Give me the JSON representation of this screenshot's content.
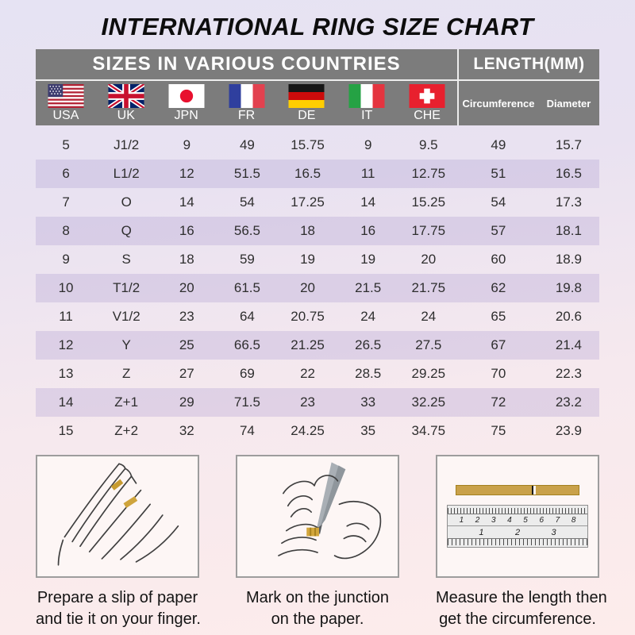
{
  "page": {
    "title": "INTERNATIONAL RING SIZE CHART"
  },
  "table": {
    "header_left": "SIZES IN VARIOUS COUNTRIES",
    "header_right": "LENGTH(MM)",
    "flags": [
      {
        "country": "USA",
        "icon": "usa-flag-icon"
      },
      {
        "country": "UK",
        "icon": "uk-flag-icon"
      },
      {
        "country": "JPN",
        "icon": "japan-flag-icon"
      },
      {
        "country": "FR",
        "icon": "france-flag-icon"
      },
      {
        "country": "DE",
        "icon": "germany-flag-icon"
      },
      {
        "country": "IT",
        "icon": "italy-flag-icon"
      },
      {
        "country": "CHE",
        "icon": "switzerland-flag-icon"
      }
    ]
  },
  "chart_data": {
    "type": "table",
    "title": "INTERNATIONAL RING SIZE CHART",
    "columns": [
      "USA",
      "UK",
      "JPN",
      "FR",
      "DE",
      "IT",
      "CHE",
      "Circumference",
      "Diameter"
    ],
    "column_groups": [
      {
        "label": "SIZES IN VARIOUS COUNTRIES",
        "span": 7
      },
      {
        "label": "LENGTH(MM)",
        "span": 2
      }
    ],
    "rows": [
      [
        "5",
        "J1/2",
        "9",
        "49",
        "15.75",
        "9",
        "9.5",
        "49",
        "15.7"
      ],
      [
        "6",
        "L1/2",
        "12",
        "51.5",
        "16.5",
        "11",
        "12.75",
        "51",
        "16.5"
      ],
      [
        "7",
        "O",
        "14",
        "54",
        "17.25",
        "14",
        "15.25",
        "54",
        "17.3"
      ],
      [
        "8",
        "Q",
        "16",
        "56.5",
        "18",
        "16",
        "17.75",
        "57",
        "18.1"
      ],
      [
        "9",
        "S",
        "18",
        "59",
        "19",
        "19",
        "20",
        "60",
        "18.9"
      ],
      [
        "10",
        "T1/2",
        "20",
        "61.5",
        "20",
        "21.5",
        "21.75",
        "62",
        "19.8"
      ],
      [
        "11",
        "V1/2",
        "23",
        "64",
        "20.75",
        "24",
        "24",
        "65",
        "20.6"
      ],
      [
        "12",
        "Y",
        "25",
        "66.5",
        "21.25",
        "26.5",
        "27.5",
        "67",
        "21.4"
      ],
      [
        "13",
        "Z",
        "27",
        "69",
        "22",
        "28.5",
        "29.25",
        "70",
        "22.3"
      ],
      [
        "14",
        "Z+1",
        "29",
        "71.5",
        "23",
        "33",
        "32.25",
        "72",
        "23.2"
      ],
      [
        "15",
        "Z+2",
        "32",
        "74",
        "24.25",
        "35",
        "34.75",
        "75",
        "23.9"
      ]
    ]
  },
  "instructions": [
    {
      "icon": "hand-with-paper-illustration",
      "caption_line1": "Prepare a slip of paper",
      "caption_line2": "and tie it on your finger."
    },
    {
      "icon": "pen-marking-illustration",
      "caption_line1": "Mark on the junction",
      "caption_line2": "on the paper."
    },
    {
      "icon": "ruler-illustration",
      "caption_line1": "Measure the length then",
      "caption_line2": "get the circumference.",
      "ruler_cm_numbers": [
        "1",
        "2",
        "3",
        "4",
        "5",
        "6",
        "7",
        "8"
      ],
      "ruler_inch_numbers": [
        "1",
        "2",
        "3"
      ]
    }
  ],
  "colors": {
    "header_bg": "#7c7c7c",
    "header_text": "#ffffff",
    "row_stripe": "#e2dbed",
    "background_top": "#e6e3f3",
    "background_bottom": "#fdeceb",
    "paper_gold": "#c9a14a"
  }
}
